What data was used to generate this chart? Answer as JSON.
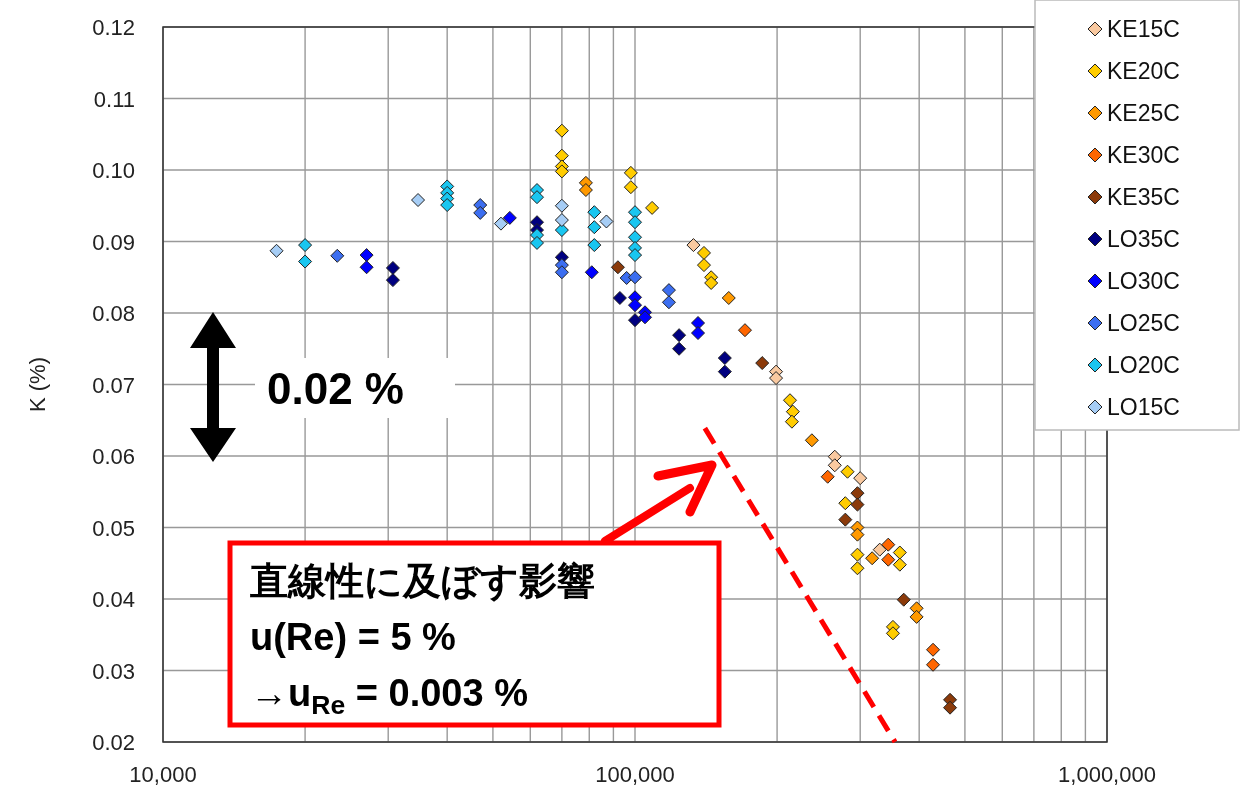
{
  "chart_data": {
    "type": "scatter",
    "ylabel": "K (%)",
    "log": "x",
    "grid": true,
    "legend": "top right",
    "marker": "diamond",
    "xlim": [
      10000,
      1000000
    ],
    "ylim": [
      0.02,
      0.12
    ],
    "xticks": [
      {
        "value": 10000,
        "label": "10,000"
      },
      {
        "value": 20000,
        "label": null
      },
      {
        "value": 30000,
        "label": null
      },
      {
        "value": 40000,
        "label": null
      },
      {
        "value": 50000,
        "label": null
      },
      {
        "value": 60000,
        "label": null
      },
      {
        "value": 70000,
        "label": null
      },
      {
        "value": 80000,
        "label": null
      },
      {
        "value": 90000,
        "label": null
      },
      {
        "value": 100000,
        "label": "100,000"
      },
      {
        "value": 200000,
        "label": null
      },
      {
        "value": 300000,
        "label": null
      },
      {
        "value": 400000,
        "label": null
      },
      {
        "value": 500000,
        "label": null
      },
      {
        "value": 600000,
        "label": null
      },
      {
        "value": 700000,
        "label": null
      },
      {
        "value": 800000,
        "label": null
      },
      {
        "value": 900000,
        "label": null
      },
      {
        "value": 1000000,
        "label": "1,000,000"
      }
    ],
    "yticks": [
      0.02,
      0.03,
      0.04,
      0.05,
      0.06,
      0.07,
      0.08,
      0.09,
      {
        "value": 0.1,
        "label": "0.10"
      },
      0.11,
      0.12
    ],
    "series": [
      {
        "name": "KE15C",
        "color": "#f9c9a0",
        "x": [
          133000,
          199000,
          199000,
          265000,
          265000,
          300000,
          330000
        ],
        "values": [
          0.0895,
          0.0718,
          0.0709,
          0.0599,
          0.0587,
          0.0569,
          0.0469
        ]
      },
      {
        "name": "KE20C",
        "color": "#ffcc00",
        "x": [
          70000,
          70000,
          70000,
          70000,
          98000,
          98000,
          108700,
          140000,
          140000,
          145000,
          145000,
          213000,
          216000,
          215000,
          282000,
          279000,
          296000,
          296000,
          364000,
          364000,
          352000,
          352000
        ],
        "values": [
          0.1055,
          0.102,
          0.1005,
          0.0998,
          0.0996,
          0.0976,
          0.0947,
          0.0884,
          0.0867,
          0.085,
          0.0842,
          0.0678,
          0.0662,
          0.0648,
          0.0578,
          0.0534,
          0.0462,
          0.0443,
          0.0465,
          0.0448,
          0.0361,
          0.0352
        ]
      },
      {
        "name": "KE25C",
        "color": "#ff9900",
        "x": [
          78700,
          78700,
          158000,
          237000,
          296000,
          296000,
          318000,
          395000,
          395000
        ],
        "values": [
          0.0982,
          0.0972,
          0.0821,
          0.0622,
          0.05,
          0.049,
          0.0457,
          0.0387,
          0.0375
        ]
      },
      {
        "name": "KE30C",
        "color": "#ff6600",
        "x": [
          171000,
          256000,
          344000,
          344000,
          428000,
          428000
        ],
        "values": [
          0.0776,
          0.0571,
          0.0476,
          0.0455,
          0.0329,
          0.0308
        ]
      },
      {
        "name": "KE35C",
        "color": "#8b3a0a",
        "x": [
          92000,
          186000,
          296000,
          296000,
          279000,
          371000,
          465000,
          465000
        ],
        "values": [
          0.0864,
          0.073,
          0.0548,
          0.0532,
          0.0511,
          0.0399,
          0.0259,
          0.0248
        ]
      },
      {
        "name": "LO35C",
        "color": "#000080",
        "x": [
          30700,
          30700,
          62000,
          62000,
          70000,
          92900,
          100000,
          124000,
          124000,
          155000,
          155000
        ],
        "values": [
          0.0863,
          0.0846,
          0.0927,
          0.0916,
          0.0878,
          0.0821,
          0.079,
          0.0769,
          0.075,
          0.0737,
          0.0718
        ]
      },
      {
        "name": "LO30C",
        "color": "#0000ff",
        "x": [
          27000,
          27000,
          54300,
          81000,
          100000,
          100000,
          105000,
          105000,
          136000,
          136000
        ],
        "values": [
          0.0881,
          0.0864,
          0.0933,
          0.0857,
          0.0822,
          0.0811,
          0.0801,
          0.0794,
          0.0786,
          0.0772
        ]
      },
      {
        "name": "LO25C",
        "color": "#3c6ef0",
        "x": [
          23400,
          47000,
          47000,
          70000,
          70000,
          96000,
          100000,
          118000,
          118000
        ],
        "values": [
          0.088,
          0.0951,
          0.094,
          0.0867,
          0.0857,
          0.0849,
          0.085,
          0.0832,
          0.0815
        ]
      },
      {
        "name": "LO20C",
        "color": "#19c6f0",
        "x": [
          20000,
          20000,
          40000,
          40000,
          40000,
          40000,
          62000,
          62000,
          62000,
          62000,
          70000,
          82000,
          82000,
          82000,
          100000,
          100000,
          100000,
          100000,
          100000
        ],
        "values": [
          0.0895,
          0.0872,
          0.0977,
          0.0968,
          0.096,
          0.0951,
          0.0972,
          0.0962,
          0.0909,
          0.0898,
          0.0916,
          0.0941,
          0.092,
          0.0895,
          0.0941,
          0.0927,
          0.0906,
          0.0891,
          0.0881
        ]
      },
      {
        "name": "LO15C",
        "color": "#a6cdf5",
        "x": [
          17400,
          34700,
          52000,
          70000,
          70000,
          87000
        ],
        "values": [
          0.0887,
          0.0958,
          0.0925,
          0.095,
          0.093,
          0.0928
        ]
      },
      {
        "type": "line",
        "color": "#ff0000",
        "line_style": "dashed",
        "marker": "none",
        "x": [
          140600,
          355600
        ],
        "values": [
          0.0639,
          0.02
        ]
      }
    ],
    "annotations": [
      "0.02 %",
      "直線性に及ぼす影響",
      "u(Re) = 5 %",
      "→u$_{Re}$ = 0.003 %"
    ]
  }
}
